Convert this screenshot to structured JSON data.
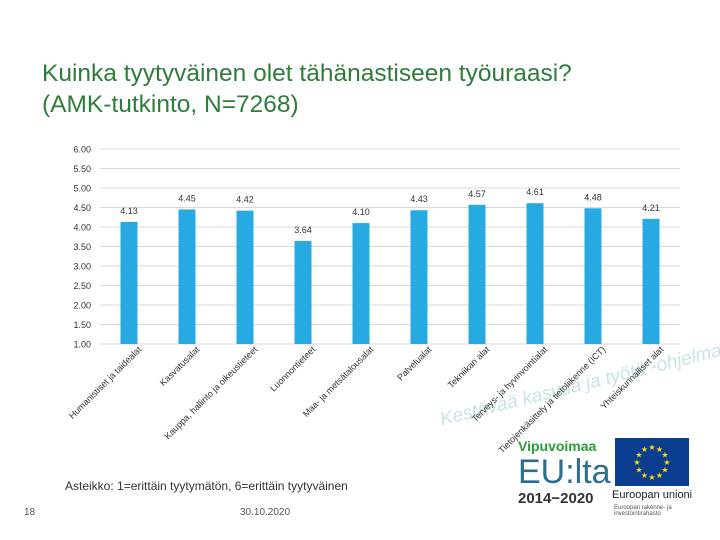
{
  "slide": {
    "title_line1": "Kuinka tyytyväinen olet tähänastiseen työuraasi?",
    "title_line2": "(AMK-tutkinto, N=7268)",
    "scale_note": "Asteikko: 1=erittäin tyytymätön, 6=erittäin tyytyväinen",
    "page_number": "18",
    "date": "30.10.2020",
    "slogan": "Kestävää kasvua ja työtä -ohjelma"
  },
  "logos": {
    "vipuvoimaa": "Vipuvoimaa",
    "eu_lta": "EU:lta",
    "years": "2014−2020",
    "eu_union": "Euroopan unioni",
    "eu_union_sub": "Euroopan rakenne- ja investointirahasto"
  },
  "colors": {
    "bar": "#27aae1",
    "title": "#2f7d3a",
    "grid": "#d9d9d9",
    "flag": "#0a3d8f",
    "stars": "#ffdd00"
  },
  "chart_data": {
    "type": "bar",
    "categories": [
      "Humanistiset ja taidealat",
      "Kasvatusalat",
      "Kauppa, hallinto ja oikeustieteet",
      "Luonnontieteet",
      "Maa- ja metsätalousalat",
      "Palvelualat",
      "Tekniikan alat",
      "Terveys- ja hyvinvointialat",
      "Tietojenkäsittely ja tietoliikenne (ICT)",
      "Yhteiskunnalliset alat"
    ],
    "values": [
      4.13,
      4.45,
      4.42,
      3.64,
      4.1,
      4.43,
      4.57,
      4.61,
      4.48,
      4.21
    ],
    "value_labels": [
      "4.13",
      "4.45",
      "4.42",
      "3.64",
      "4.10",
      "4.43",
      "4.57",
      "4.61",
      "4.48",
      "4.21"
    ],
    "yticks": [
      "1.00",
      "1.50",
      "2.00",
      "2.50",
      "3.00",
      "3.50",
      "4.00",
      "4.50",
      "5.00",
      "5.50",
      "6.00"
    ],
    "ylim": [
      1,
      6
    ],
    "grid": true,
    "legend": "none"
  }
}
